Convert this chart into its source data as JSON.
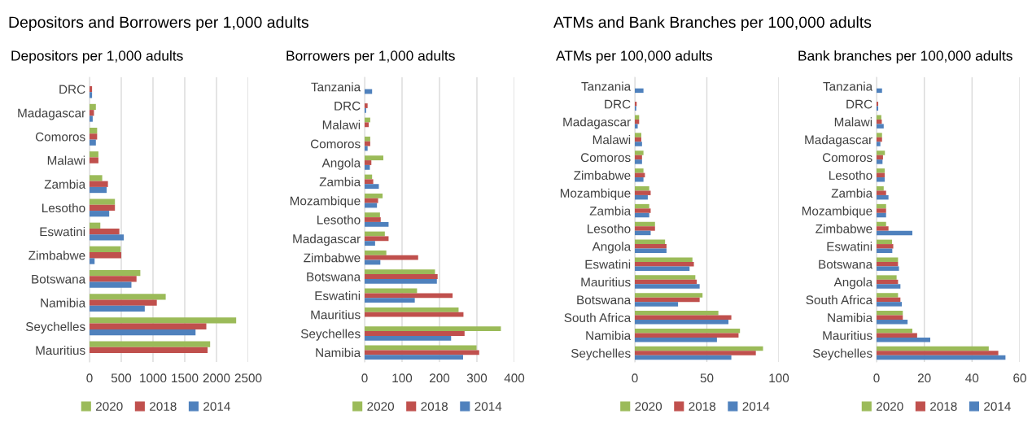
{
  "chart_data": [
    {
      "type": "bar",
      "orientation": "horizontal",
      "title": "Depositors per 1,000 adults",
      "annotations": [
        "Depositors and Borrowers per 1,000 adults"
      ],
      "categories": [
        "DRC",
        "Madagascar",
        "Comoros",
        "Malawi",
        "Zambia",
        "Lesotho",
        "Eswatini",
        "Zimbabwe",
        "Botswana",
        "Namibia",
        "Seychelles",
        "Mauritius"
      ],
      "series": [
        {
          "name": "2020",
          "color": "#9bbb59",
          "values": [
            null,
            100,
            120,
            140,
            200,
            400,
            170,
            490,
            800,
            1200,
            2310,
            1900
          ]
        },
        {
          "name": "2018",
          "color": "#c0504d",
          "values": [
            40,
            70,
            120,
            140,
            290,
            400,
            470,
            500,
            740,
            1060,
            1840,
            1860
          ]
        },
        {
          "name": "2014",
          "color": "#4f81bd",
          "values": [
            40,
            50,
            100,
            null,
            270,
            310,
            540,
            80,
            660,
            870,
            1670,
            null
          ]
        }
      ],
      "xlim": [
        0,
        2500
      ],
      "xticks": [
        0,
        500,
        1000,
        1500,
        2000,
        2500
      ],
      "grid": "x",
      "legend": "bottom"
    },
    {
      "type": "bar",
      "orientation": "horizontal",
      "title": "Borrowers per 1,000 adults",
      "categories": [
        "Tanzania",
        "DRC",
        "Malawi",
        "Comoros",
        "Angola",
        "Zambia",
        "Mozambique",
        "Lesotho",
        "Madagascar",
        "Zimbabwe",
        "Botswana",
        "Eswatini",
        "Mauritius",
        "Seychelles",
        "Namibia"
      ],
      "series": [
        {
          "name": "2020",
          "color": "#9bbb59",
          "values": [
            null,
            null,
            15,
            15,
            50,
            20,
            48,
            41,
            54,
            58,
            188,
            140,
            251,
            364,
            299
          ]
        },
        {
          "name": "2018",
          "color": "#c0504d",
          "values": [
            null,
            8,
            11,
            15,
            18,
            23,
            36,
            43,
            64,
            143,
            195,
            235,
            264,
            267,
            306
          ]
        },
        {
          "name": "2014",
          "color": "#4f81bd",
          "values": [
            20,
            4,
            null,
            8,
            14,
            38,
            33,
            64,
            28,
            42,
            193,
            134,
            null,
            231,
            263
          ]
        }
      ],
      "xlim": [
        0,
        400
      ],
      "xticks": [
        0,
        100,
        200,
        300,
        400
      ],
      "grid": "x",
      "legend": "bottom"
    },
    {
      "type": "bar",
      "orientation": "horizontal",
      "title": "ATMs per 100,000 adults",
      "annotations": [
        "ATMs and Bank Branches per 100,000 adults"
      ],
      "categories": [
        "Tanzania",
        "DRC",
        "Madagascar",
        "Malawi",
        "Comoros",
        "Zimbabwe",
        "Mozambique",
        "Zambia",
        "Lesotho",
        "Angola",
        "Eswatini",
        "Mauritius",
        "Botswana",
        "South Africa",
        "Namibia",
        "Seychelles"
      ],
      "series": [
        {
          "name": "2020",
          "color": "#9bbb59",
          "values": [
            null,
            null,
            3,
            4.5,
            6,
            6,
            10,
            10,
            14,
            21,
            40,
            42,
            47,
            58,
            73,
            89
          ]
        },
        {
          "name": "2018",
          "color": "#c0504d",
          "values": [
            null,
            1.3,
            3,
            4.5,
            5,
            7,
            11,
            11,
            14,
            22,
            41,
            43,
            45,
            67,
            72,
            84
          ]
        },
        {
          "name": "2014",
          "color": "#4f81bd",
          "values": [
            6,
            1,
            2,
            5,
            5,
            6,
            9,
            10,
            11,
            22,
            38,
            45,
            30,
            65,
            57,
            67
          ]
        }
      ],
      "xlim": [
        0,
        100
      ],
      "xticks": [
        0,
        50,
        100
      ],
      "grid": "x",
      "legend": "bottom"
    },
    {
      "type": "bar",
      "orientation": "horizontal",
      "title": "Bank branches per 100,000 adults",
      "categories": [
        "Tanzania",
        "DRC",
        "Malawi",
        "Madagascar",
        "Comoros",
        "Lesotho",
        "Zambia",
        "Mozambique",
        "Zimbabwe",
        "Eswatini",
        "Botswana",
        "Angola",
        "South Africa",
        "Namibia",
        "Mauritius",
        "Seychelles"
      ],
      "series": [
        {
          "name": "2020",
          "color": "#9bbb59",
          "values": [
            null,
            null,
            2,
            2.3,
            3.5,
            3.4,
            3,
            4,
            4,
            6.5,
            9,
            8.4,
            9,
            11,
            15,
            47
          ]
        },
        {
          "name": "2018",
          "color": "#c0504d",
          "values": [
            null,
            0.7,
            2.2,
            2.3,
            2.7,
            3.4,
            4,
            4,
            5,
            7,
            9,
            9,
            10,
            11,
            17,
            51
          ]
        },
        {
          "name": "2014",
          "color": "#4f81bd",
          "values": [
            2.3,
            0.7,
            3,
            1.6,
            2.5,
            3.4,
            5,
            4,
            15,
            6.6,
            9.4,
            10,
            10.6,
            13,
            22.5,
            54
          ]
        }
      ],
      "xlim": [
        0,
        60
      ],
      "xticks": [
        0,
        20,
        40,
        60
      ],
      "grid": "x",
      "legend": "bottom"
    }
  ]
}
